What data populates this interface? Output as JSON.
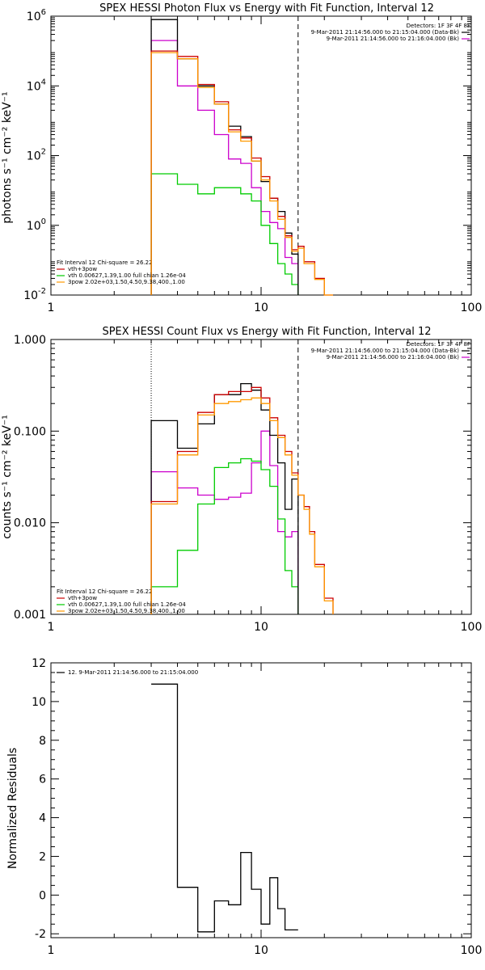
{
  "colors": {
    "data": "#000000",
    "total": "#cc0000",
    "vth": "#00cc00",
    "pow": "#ff9900",
    "bk": "#cc00cc"
  },
  "chart_data": [
    {
      "type": "line",
      "title": "SPEX HESSI Photon Flux vs Energy with Fit Function, Interval 12",
      "xlabel": "",
      "ylabel": "photons s⁻¹ cm⁻² keV⁻¹",
      "xscale": "log",
      "yscale": "log",
      "xlim": [
        1,
        100
      ],
      "ylim": [
        0.01,
        1000000
      ],
      "xticks": [
        "1",
        "10",
        "100"
      ],
      "yticks": [
        {
          "base": "10",
          "exp": "-2",
          "v": 0.01
        },
        {
          "base": "10",
          "exp": "0",
          "v": 1
        },
        {
          "base": "10",
          "exp": "2",
          "v": 100
        },
        {
          "base": "10",
          "exp": "4",
          "v": 10000
        },
        {
          "base": "10",
          "exp": "6",
          "v": 1000000
        }
      ],
      "fit_range_lines": [
        3.0,
        15.0
      ],
      "detectors_label": "Detectors: 1F 3F 4F 8F",
      "legend_right": [
        {
          "text": "9-Mar-2011 21:14:56.000 to 21:15:04.000 (Data-Bk)",
          "color": "#000000"
        },
        {
          "text": "9-Mar-2011 21:14:56.000 to 21:16:04.000 (Bk)",
          "color": "#cc00cc"
        }
      ],
      "fit_info": "Fit Interval 12   Chi-square = 26.22",
      "legend_left": [
        {
          "text": "vth+3pow",
          "color": "#cc0000"
        },
        {
          "text": "vth 0.00627,1.39,1.00  full chian 1.26e-04",
          "color": "#00cc00"
        },
        {
          "text": "3pow 2.02e+03,1.50,4.50,9.38,400.,1.00",
          "color": "#ff9900"
        }
      ],
      "edges": [
        3.0,
        4.0,
        5.0,
        6.0,
        7.0,
        8.0,
        9.0,
        10.0,
        11.0,
        12.0,
        13.0,
        14.0,
        15.0,
        16.0,
        18.0,
        20.0,
        22.0,
        25.0
      ],
      "series": [
        {
          "key": "data",
          "values": [
            800000,
            60000,
            10000,
            3000,
            700,
            350,
            70,
            18,
            6,
            2.5,
            0.6,
            0.15,
            null,
            null,
            null,
            null,
            null
          ]
        },
        {
          "key": "total",
          "values": [
            100000,
            70000,
            11000,
            3500,
            550,
            320,
            85,
            25,
            6,
            1.8,
            0.5,
            0.2,
            0.25,
            0.09,
            0.03,
            0.01,
            null
          ]
        },
        {
          "key": "pow",
          "values": [
            90000,
            60000,
            9000,
            3000,
            480,
            260,
            70,
            20,
            5,
            1.5,
            0.45,
            0.18,
            0.22,
            0.08,
            0.028,
            0.01,
            null
          ]
        },
        {
          "key": "bk",
          "values": [
            200000,
            10000,
            2000,
            400,
            80,
            60,
            12,
            2.5,
            1.2,
            0.8,
            0.12,
            0.08,
            null,
            null,
            null,
            null,
            null
          ]
        },
        {
          "key": "vth",
          "values": [
            30,
            15,
            8,
            12,
            12,
            8,
            5,
            1,
            0.3,
            0.08,
            0.04,
            0.02,
            null,
            null,
            null,
            null,
            null
          ]
        }
      ]
    },
    {
      "type": "line",
      "title": "SPEX HESSI Count Flux vs Energy with Fit Function, Interval 12",
      "xlabel": "",
      "ylabel": "counts s⁻¹ cm⁻² keV⁻¹",
      "xscale": "log",
      "yscale": "log",
      "xlim": [
        1,
        100
      ],
      "ylim": [
        0.001,
        1.0
      ],
      "xticks": [
        "1",
        "10",
        "100"
      ],
      "yticks": [
        {
          "label": "0.001",
          "v": 0.001
        },
        {
          "label": "0.010",
          "v": 0.01
        },
        {
          "label": "0.100",
          "v": 0.1
        },
        {
          "label": "1.000",
          "v": 1.0
        }
      ],
      "fit_range_lines": [
        3.0,
        15.0
      ],
      "detectors_label": "Detectors: 1F 3F 4F 8F",
      "legend_right": [
        {
          "text": "9-Mar-2011 21:14:56.000 to 21:15:04.000 (Data-Bk)",
          "color": "#000000"
        },
        {
          "text": "9-Mar-2011 21:14:56.000 to 21:16:04.000 (Bk)",
          "color": "#cc00cc"
        }
      ],
      "fit_info": "Fit Interval 12   Chi-square = 26.22",
      "legend_left": [
        {
          "text": "vth+3pow",
          "color": "#cc0000"
        },
        {
          "text": "vth 0.00627,1.39,1.00  full chian 1.26e-04",
          "color": "#00cc00"
        },
        {
          "text": "3pow 2.02e+03,1.50,4.50,9.38,400.,1.00",
          "color": "#ff9900"
        }
      ],
      "edges": [
        3.0,
        4.0,
        5.0,
        6.0,
        7.0,
        8.0,
        9.0,
        10.0,
        11.0,
        12.0,
        13.0,
        14.0,
        15.0,
        16.0,
        17.0,
        18.0,
        20.0,
        22.0,
        25.0
      ],
      "series": [
        {
          "key": "data",
          "values": [
            0.13,
            0.065,
            0.12,
            0.25,
            0.25,
            0.33,
            0.28,
            0.17,
            0.09,
            0.045,
            0.014,
            0.03,
            null,
            null,
            null,
            null,
            null,
            null
          ]
        },
        {
          "key": "total",
          "values": [
            0.017,
            0.06,
            0.16,
            0.25,
            0.27,
            0.27,
            0.3,
            0.23,
            0.14,
            0.09,
            0.06,
            0.035,
            0.02,
            0.015,
            0.008,
            0.0035,
            0.0015,
            null
          ]
        },
        {
          "key": "pow",
          "values": [
            0.016,
            0.055,
            0.15,
            0.2,
            0.21,
            0.22,
            0.23,
            0.2,
            0.13,
            0.085,
            0.055,
            0.033,
            0.02,
            0.014,
            0.0075,
            0.0033,
            0.0014,
            null
          ]
        },
        {
          "key": "bk",
          "values": [
            0.036,
            0.024,
            0.02,
            0.018,
            0.019,
            0.021,
            0.045,
            0.1,
            0.042,
            0.008,
            0.007,
            0.008,
            null,
            null,
            null,
            null,
            null,
            null
          ]
        },
        {
          "key": "vth",
          "values": [
            0.002,
            0.005,
            0.016,
            0.04,
            0.045,
            0.05,
            0.047,
            0.038,
            0.025,
            0.011,
            0.003,
            0.002,
            null,
            null,
            null,
            null,
            null,
            null
          ]
        }
      ]
    },
    {
      "type": "line",
      "title": "",
      "xlabel": "",
      "ylabel": "Normalized Residuals",
      "xscale": "log",
      "yscale": "linear",
      "xlim": [
        1,
        100
      ],
      "ylim": [
        -2.2,
        12
      ],
      "xticks": [
        "1",
        "10",
        "100"
      ],
      "yticks": [
        {
          "label": "-2",
          "v": -2
        },
        {
          "label": "0",
          "v": 0
        },
        {
          "label": "2",
          "v": 2
        },
        {
          "label": "4",
          "v": 4
        },
        {
          "label": "6",
          "v": 6
        },
        {
          "label": "8",
          "v": 8
        },
        {
          "label": "10",
          "v": 10
        },
        {
          "label": "12",
          "v": 12
        }
      ],
      "legend_right": [],
      "legend_left": [
        {
          "text": "12.  9-Mar-2011 21:14:56.000 to 21:15:04.000",
          "color": "#000000"
        }
      ],
      "edges": [
        3.0,
        4.0,
        5.0,
        6.0,
        7.0,
        8.0,
        9.0,
        10.0,
        11.0,
        12.0,
        13.0,
        15.0
      ],
      "series": [
        {
          "key": "data",
          "values": [
            10.9,
            0.4,
            -1.9,
            -0.3,
            -0.5,
            2.2,
            0.3,
            -1.5,
            0.9,
            -0.7,
            -1.8
          ]
        }
      ]
    }
  ]
}
